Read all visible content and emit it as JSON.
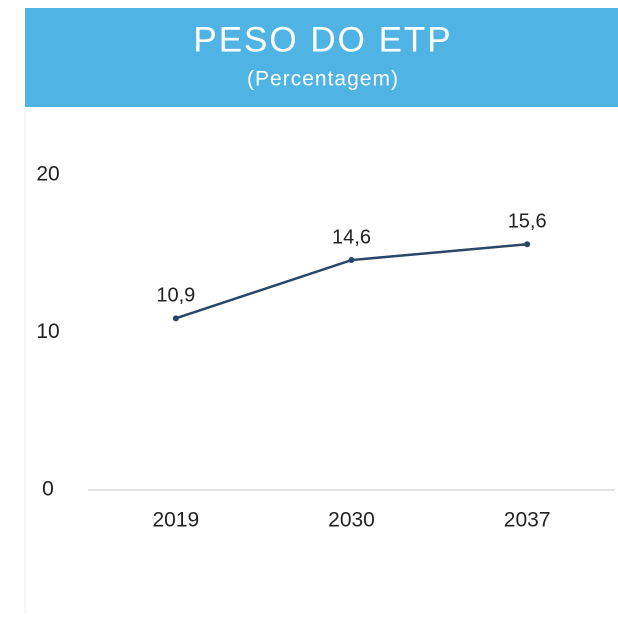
{
  "chart_data": {
    "type": "line",
    "title": "PESO DO ETP",
    "subtitle": "(Percentagem)",
    "categories": [
      "2019",
      "2030",
      "2037"
    ],
    "values": [
      10.9,
      14.6,
      15.6
    ],
    "value_labels": [
      "10,9",
      "14,6",
      "15,6"
    ],
    "color": "#2b4767",
    "ylim": [
      0,
      20
    ],
    "yticks": [
      0,
      10,
      20
    ],
    "grid": false
  }
}
